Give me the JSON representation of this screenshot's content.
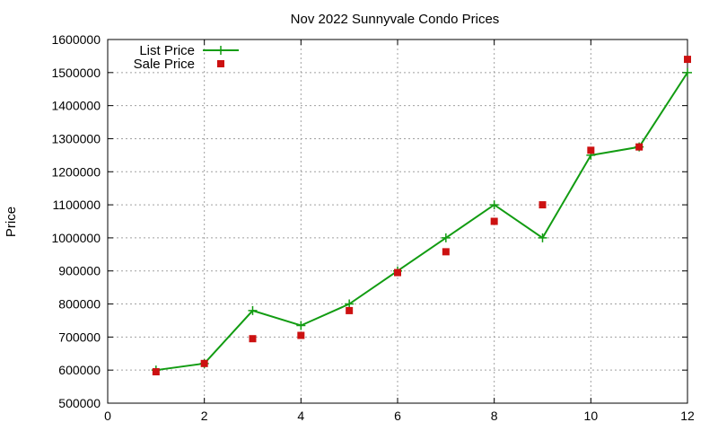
{
  "chart_data": {
    "type": "line",
    "title": "Nov 2022 Sunnyvale Condo Prices",
    "xlabel": "",
    "ylabel": "Price",
    "xlim": [
      0,
      12
    ],
    "ylim": [
      500000,
      1600000
    ],
    "xticks": [
      "0",
      "2",
      "4",
      "6",
      "8",
      "10",
      "12"
    ],
    "yticks": [
      "500000",
      "600000",
      "700000",
      "800000",
      "900000",
      "1000000",
      "1100000",
      "1200000",
      "1300000",
      "1400000",
      "1500000",
      "1600000"
    ],
    "grid": true,
    "legend_position": "top-left",
    "series": [
      {
        "name": "List Price",
        "style": "line+cross",
        "color": "#129c12",
        "x": [
          1,
          2,
          3,
          4,
          5,
          6,
          7,
          8,
          9,
          10,
          11,
          12
        ],
        "y": [
          600000,
          620000,
          780000,
          735000,
          800000,
          900000,
          1000000,
          1100000,
          1000000,
          1250000,
          1275000,
          1500000
        ]
      },
      {
        "name": "Sale Price",
        "style": "square",
        "color": "#cc1111",
        "x": [
          1,
          2,
          3,
          4,
          5,
          6,
          7,
          8,
          9,
          10,
          11,
          12
        ],
        "y": [
          595000,
          620000,
          695000,
          705000,
          780000,
          895000,
          958000,
          1050000,
          1100000,
          1265000,
          1275000,
          1540000
        ]
      }
    ]
  }
}
